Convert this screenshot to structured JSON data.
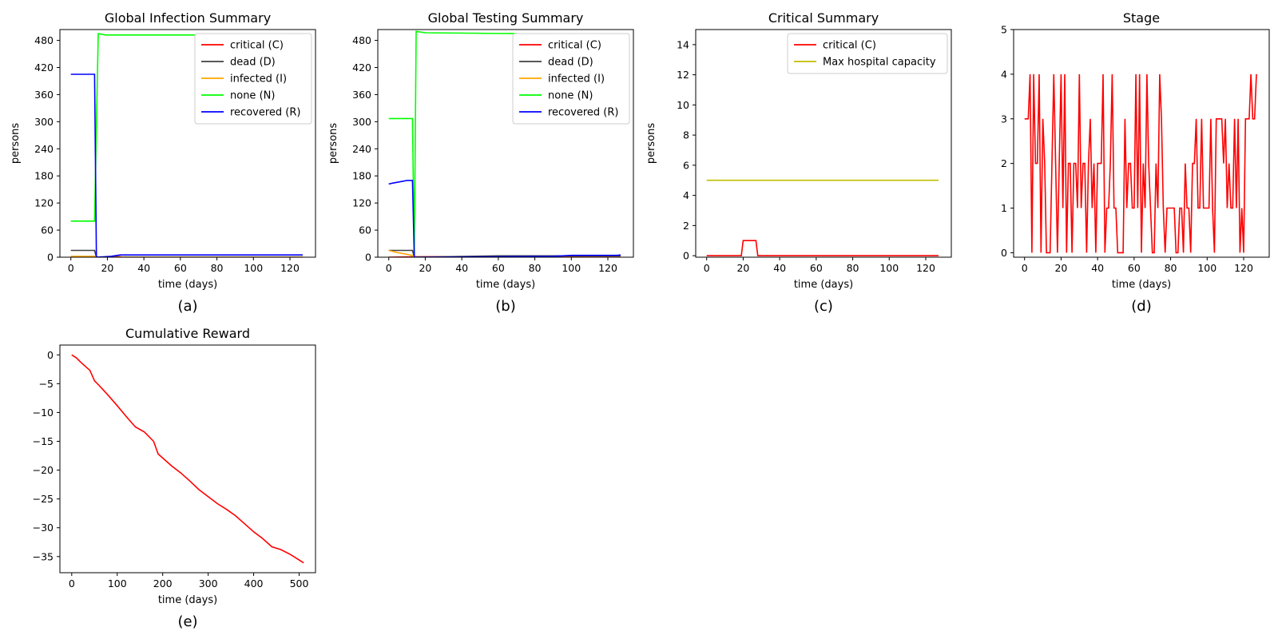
{
  "chart_data": [
    {
      "type": "line",
      "title": "Global Infection Summary",
      "caption": "(a)",
      "xlabel": "time (days)",
      "ylabel": "persons",
      "xlim": [
        -6,
        134
      ],
      "ylim": [
        0,
        504
      ],
      "xticks": [
        0,
        20,
        40,
        60,
        80,
        100,
        120
      ],
      "yticks": [
        0,
        60,
        120,
        180,
        240,
        300,
        360,
        420,
        480
      ],
      "legend": "top-right",
      "series": [
        {
          "name": "critical (C)",
          "color": "#ff0000",
          "x": [
            0,
            19,
            20,
            27,
            28,
            127
          ],
          "y": [
            0,
            0,
            1,
            1,
            0,
            0
          ]
        },
        {
          "name": "dead (D)",
          "color": "#404040",
          "x": [
            0,
            13,
            14,
            127
          ],
          "y": [
            15,
            15,
            0,
            0
          ]
        },
        {
          "name": "infected (I)",
          "color": "#ffa500",
          "x": [
            0,
            13,
            14,
            127
          ],
          "y": [
            2,
            2,
            0,
            0
          ]
        },
        {
          "name": "none (N)",
          "color": "#00ff00",
          "x": [
            0,
            13,
            15,
            19,
            127
          ],
          "y": [
            80,
            80,
            495,
            492,
            492
          ]
        },
        {
          "name": "recovered (R)",
          "color": "#0000ff",
          "x": [
            0,
            13,
            14,
            22,
            27,
            127
          ],
          "y": [
            405,
            405,
            0,
            2,
            5,
            5
          ]
        }
      ]
    },
    {
      "type": "line",
      "title": "Global Testing Summary",
      "caption": "(b)",
      "xlabel": "time (days)",
      "ylabel": "persons",
      "xlim": [
        -6,
        134
      ],
      "ylim": [
        0,
        504
      ],
      "xticks": [
        0,
        20,
        40,
        60,
        80,
        100,
        120
      ],
      "yticks": [
        0,
        60,
        120,
        180,
        240,
        300,
        360,
        420,
        480
      ],
      "legend": "top-right",
      "series": [
        {
          "name": "critical (C)",
          "color": "#ff0000",
          "x": [
            0,
            20,
            27,
            127
          ],
          "y": [
            0,
            1,
            1,
            0
          ]
        },
        {
          "name": "dead (D)",
          "color": "#404040",
          "x": [
            0,
            13,
            14,
            60,
            127
          ],
          "y": [
            15,
            15,
            0,
            3,
            3
          ]
        },
        {
          "name": "infected (I)",
          "color": "#ffa500",
          "x": [
            0,
            5,
            13,
            14,
            127
          ],
          "y": [
            15,
            10,
            4,
            0,
            0
          ]
        },
        {
          "name": "none (N)",
          "color": "#00ff00",
          "x": [
            0,
            13,
            14,
            15,
            20,
            70,
            75,
            127
          ],
          "y": [
            307,
            307,
            0,
            500,
            497,
            495,
            492,
            492
          ]
        },
        {
          "name": "recovered (R)",
          "color": "#0000ff",
          "x": [
            0,
            2,
            5,
            10,
            13,
            14,
            60,
            90,
            100,
            125,
            127
          ],
          "y": [
            162,
            164,
            166,
            170,
            170,
            0,
            1,
            2,
            4,
            4,
            5
          ]
        }
      ]
    },
    {
      "type": "line",
      "title": "Critical Summary",
      "caption": "(c)",
      "xlabel": "time (days)",
      "ylabel": "persons",
      "xlim": [
        -6,
        134
      ],
      "ylim": [
        -0.1,
        15
      ],
      "xticks": [
        0,
        20,
        40,
        60,
        80,
        100,
        120
      ],
      "yticks": [
        0,
        2,
        4,
        6,
        8,
        10,
        12,
        14
      ],
      "legend": "top-right",
      "series": [
        {
          "name": "critical (C)",
          "color": "#ff0000",
          "x": [
            0,
            19,
            20,
            27,
            28,
            127
          ],
          "y": [
            0,
            0,
            1,
            1,
            0,
            0
          ]
        },
        {
          "name": "Max hospital capacity",
          "color": "#bfbf00",
          "x": [
            0,
            127
          ],
          "y": [
            5,
            5
          ]
        }
      ]
    },
    {
      "type": "line",
      "title": "Stage",
      "caption": "(d)",
      "xlabel": "time (days)",
      "ylabel": "",
      "xlim": [
        -6,
        134
      ],
      "ylim": [
        -0.1,
        5
      ],
      "xticks": [
        0,
        20,
        40,
        60,
        80,
        100,
        120
      ],
      "yticks": [
        0,
        1,
        2,
        3,
        4,
        5
      ],
      "series": [
        {
          "name": "",
          "color": "#ff0000",
          "x": [
            0,
            1,
            2,
            3,
            4,
            5,
            6,
            7,
            8,
            9,
            10,
            11,
            12,
            13,
            14,
            15,
            16,
            17,
            18,
            19,
            20,
            21,
            22,
            23,
            24,
            25,
            26,
            27,
            28,
            29,
            30,
            31,
            32,
            33,
            34,
            35,
            36,
            37,
            38,
            39,
            40,
            41,
            42,
            43,
            44,
            45,
            46,
            47,
            48,
            49,
            50,
            51,
            52,
            53,
            54,
            55,
            56,
            57,
            58,
            59,
            60,
            61,
            62,
            63,
            64,
            65,
            66,
            67,
            68,
            69,
            70,
            71,
            72,
            73,
            74,
            75,
            76,
            77,
            78,
            79,
            80,
            81,
            82,
            83,
            84,
            85,
            86,
            87,
            88,
            89,
            90,
            91,
            92,
            93,
            94,
            95,
            96,
            97,
            98,
            99,
            100,
            101,
            102,
            103,
            104,
            105,
            106,
            107,
            108,
            109,
            110,
            111,
            112,
            113,
            114,
            115,
            116,
            117,
            118,
            119,
            120,
            121,
            122,
            123,
            124,
            125,
            126,
            127
          ],
          "y": [
            3,
            3,
            3,
            4,
            0,
            4,
            2,
            2,
            4,
            0,
            3,
            2,
            0,
            0,
            0,
            2,
            4,
            2,
            0,
            2,
            4,
            1,
            4,
            0,
            2,
            2,
            0,
            2,
            2,
            1,
            4,
            1,
            2,
            2,
            0,
            2,
            3,
            1,
            2,
            0,
            2,
            2,
            2,
            4,
            0,
            1,
            1,
            2,
            4,
            1,
            1,
            0,
            0,
            0,
            0,
            3,
            1,
            2,
            2,
            1,
            1,
            4,
            1,
            4,
            0,
            2,
            1,
            4,
            2,
            1,
            0,
            0,
            2,
            1,
            4,
            3,
            1,
            0,
            1,
            1,
            1,
            1,
            1,
            0,
            0,
            1,
            1,
            0,
            2,
            1,
            1,
            0,
            2,
            2,
            3,
            1,
            1,
            3,
            1,
            1,
            1,
            1,
            3,
            1,
            0,
            3,
            3,
            3,
            3,
            2,
            3,
            1,
            2,
            1,
            1,
            3,
            1,
            3,
            0,
            1,
            0,
            3,
            3,
            3,
            4,
            3,
            3,
            4
          ]
        }
      ]
    },
    {
      "type": "line",
      "title": "Cumulative Reward",
      "caption": "(e)",
      "xlabel": "time (days)",
      "ylabel": "",
      "xlim": [
        -26,
        536
      ],
      "ylim": [
        -37.8,
        1.7
      ],
      "xticks": [
        0,
        100,
        200,
        300,
        400,
        500
      ],
      "yticks": [
        0,
        -5,
        -10,
        -15,
        -20,
        -25,
        -30,
        -35
      ],
      "series": [
        {
          "name": "",
          "color": "#ff0000",
          "x": [
            0,
            10,
            20,
            30,
            40,
            50,
            60,
            80,
            100,
            120,
            140,
            160,
            180,
            190,
            200,
            220,
            240,
            260,
            280,
            300,
            320,
            340,
            360,
            380,
            400,
            420,
            440,
            460,
            480,
            500,
            510
          ],
          "y": [
            0,
            -0.5,
            -1.3,
            -2.0,
            -2.7,
            -4.5,
            -5.3,
            -7.0,
            -8.8,
            -10.7,
            -12.5,
            -13.4,
            -15.0,
            -17.2,
            -17.9,
            -19.3,
            -20.5,
            -21.9,
            -23.4,
            -24.6,
            -25.8,
            -26.8,
            -27.9,
            -29.3,
            -30.7,
            -31.9,
            -33.3,
            -33.8,
            -34.6,
            -35.6,
            -36.1
          ]
        }
      ]
    }
  ]
}
